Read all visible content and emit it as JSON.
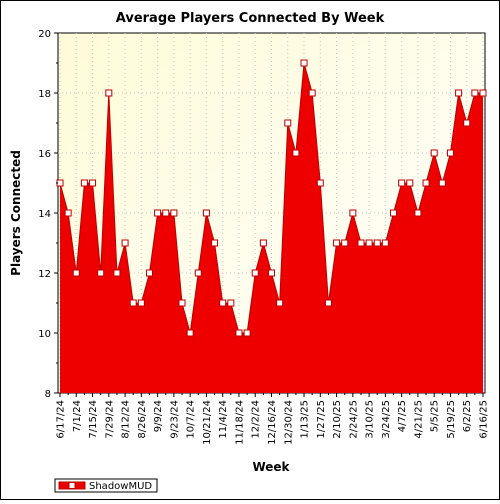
{
  "chart_data": {
    "type": "area",
    "title": "Average Players Connected By Week",
    "xlabel": "Week",
    "ylabel": "Players Connected",
    "ylim": [
      8,
      20
    ],
    "yticks": [
      8,
      10,
      12,
      14,
      16,
      18,
      20
    ],
    "grid": true,
    "legend_position": "bottom-left",
    "colors": {
      "area_fill": "#ee0000",
      "line": "#bb0000",
      "plot_background_top": "#fffbd8",
      "plot_background_bottom": "#ffffff",
      "marker_fill": "#ffffff"
    },
    "x_tick_labels": [
      "6/17/24",
      "7/1/24",
      "7/15/24",
      "7/29/24",
      "8/12/24",
      "8/26/24",
      "9/9/24",
      "9/23/24",
      "10/7/24",
      "10/21/24",
      "11/4/24",
      "11/18/24",
      "12/2/24",
      "12/16/24",
      "12/30/24",
      "1/13/25",
      "1/27/25",
      "2/10/25",
      "2/24/25",
      "3/10/25",
      "3/24/25",
      "4/7/25",
      "4/21/25",
      "5/5/25",
      "5/19/25",
      "6/2/25",
      "6/16/25"
    ],
    "x": [
      "6/17/24",
      "6/24/24",
      "7/1/24",
      "7/8/24",
      "7/15/24",
      "7/22/24",
      "7/29/24",
      "8/5/24",
      "8/12/24",
      "8/19/24",
      "8/26/24",
      "9/2/24",
      "9/9/24",
      "9/16/24",
      "9/23/24",
      "9/30/24",
      "10/7/24",
      "10/14/24",
      "10/21/24",
      "10/28/24",
      "11/4/24",
      "11/11/24",
      "11/18/24",
      "11/25/24",
      "12/2/24",
      "12/9/24",
      "12/16/24",
      "12/23/24",
      "12/30/24",
      "1/6/25",
      "1/13/25",
      "1/20/25",
      "1/27/25",
      "2/3/25",
      "2/10/25",
      "2/17/25",
      "2/24/25",
      "3/3/25",
      "3/10/25",
      "3/17/25",
      "3/24/25",
      "3/31/25",
      "4/7/25",
      "4/14/25",
      "4/21/25",
      "4/28/25",
      "5/5/25",
      "5/12/25",
      "5/19/25",
      "5/26/25",
      "6/2/25",
      "6/9/25",
      "6/16/25"
    ],
    "series": [
      {
        "name": "ShadowMUD",
        "values": [
          15,
          14,
          12,
          15,
          15,
          12,
          18,
          12,
          13,
          11,
          11,
          12,
          14,
          14,
          14,
          11,
          10,
          12,
          14,
          13,
          11,
          11,
          10,
          10,
          12,
          13,
          12,
          11,
          17,
          16,
          19,
          18,
          15,
          11,
          13,
          13,
          14,
          13,
          13,
          13,
          13,
          14,
          15,
          15,
          14,
          15,
          16,
          15,
          16,
          18,
          17,
          18,
          18
        ]
      }
    ]
  }
}
